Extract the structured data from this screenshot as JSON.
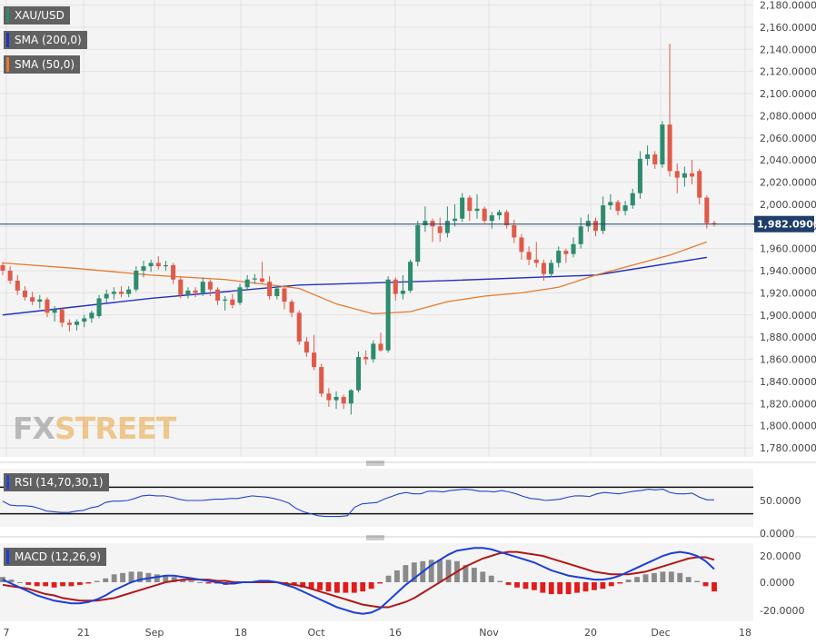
{
  "legend": {
    "instrument": "XAU/USD",
    "sma200": "SMA (200,0)",
    "sma50": "SMA (50,0)",
    "rsi": "RSI (14,70,30,1)",
    "macd": "MACD (12,26,9)"
  },
  "watermark": {
    "fx": "FX",
    "street": "STREET"
  },
  "last_price": "1,982.0900",
  "colors": {
    "up": "#2e8b6f",
    "down": "#e05a4a",
    "sma200": "#2233bb",
    "sma50": "#e8782a",
    "rsi": "#2244cc",
    "macd": "#1a3fd6",
    "signal": "#b01818",
    "hist_pos": "#8a8a8a",
    "hist_neg": "#e21b1b",
    "pane_bg": "#f4f4f4",
    "grid": "#e2e2e2"
  },
  "chart_data": [
    {
      "type": "candlestick",
      "title": "XAU/USD",
      "x_tick_labels": [
        "7",
        "21",
        "Sep",
        "18",
        "Oct",
        "16",
        "Nov",
        "20",
        "Dec",
        "18"
      ],
      "y_tick_labels": [
        "2,180.0000",
        "2,160.0000",
        "2,140.0000",
        "2,120.0000",
        "2,100.0000",
        "2,080.0000",
        "2,060.0000",
        "2,040.0000",
        "2,020.0000",
        "2,000.0000",
        "1,980.0000",
        "1,960.0000",
        "1,940.0000",
        "1,920.0000",
        "1,900.0000",
        "1,880.0000",
        "1,860.0000",
        "1,840.0000",
        "1,820.0000",
        "1,800.0000",
        "1,780.0000"
      ],
      "ylim": [
        1772,
        2185
      ],
      "last_value": 1982.09,
      "candles": [
        {
          "o": 1945,
          "h": 1948,
          "l": 1936,
          "c": 1940
        },
        {
          "o": 1940,
          "h": 1944,
          "l": 1928,
          "c": 1931
        },
        {
          "o": 1931,
          "h": 1936,
          "l": 1918,
          "c": 1922
        },
        {
          "o": 1922,
          "h": 1926,
          "l": 1913,
          "c": 1916
        },
        {
          "o": 1916,
          "h": 1921,
          "l": 1909,
          "c": 1912
        },
        {
          "o": 1912,
          "h": 1918,
          "l": 1906,
          "c": 1914
        },
        {
          "o": 1914,
          "h": 1916,
          "l": 1898,
          "c": 1902
        },
        {
          "o": 1902,
          "h": 1908,
          "l": 1894,
          "c": 1905
        },
        {
          "o": 1905,
          "h": 1906,
          "l": 1889,
          "c": 1893
        },
        {
          "o": 1893,
          "h": 1896,
          "l": 1885,
          "c": 1891
        },
        {
          "o": 1891,
          "h": 1896,
          "l": 1886,
          "c": 1894
        },
        {
          "o": 1894,
          "h": 1900,
          "l": 1889,
          "c": 1897
        },
        {
          "o": 1897,
          "h": 1904,
          "l": 1893,
          "c": 1902
        },
        {
          "o": 1899,
          "h": 1918,
          "l": 1897,
          "c": 1915
        },
        {
          "o": 1915,
          "h": 1923,
          "l": 1911,
          "c": 1919
        },
        {
          "o": 1919,
          "h": 1925,
          "l": 1914,
          "c": 1921
        },
        {
          "o": 1921,
          "h": 1926,
          "l": 1916,
          "c": 1919
        },
        {
          "o": 1919,
          "h": 1926,
          "l": 1916,
          "c": 1923
        },
        {
          "o": 1923,
          "h": 1944,
          "l": 1921,
          "c": 1940
        },
        {
          "o": 1940,
          "h": 1949,
          "l": 1934,
          "c": 1944
        },
        {
          "o": 1944,
          "h": 1950,
          "l": 1939,
          "c": 1947
        },
        {
          "o": 1947,
          "h": 1953,
          "l": 1941,
          "c": 1944
        },
        {
          "o": 1944,
          "h": 1949,
          "l": 1940,
          "c": 1945
        },
        {
          "o": 1945,
          "h": 1947,
          "l": 1928,
          "c": 1932
        },
        {
          "o": 1932,
          "h": 1935,
          "l": 1915,
          "c": 1918
        },
        {
          "o": 1918,
          "h": 1925,
          "l": 1915,
          "c": 1922
        },
        {
          "o": 1922,
          "h": 1925,
          "l": 1916,
          "c": 1920
        },
        {
          "o": 1920,
          "h": 1934,
          "l": 1917,
          "c": 1930
        },
        {
          "o": 1930,
          "h": 1932,
          "l": 1917,
          "c": 1923
        },
        {
          "o": 1923,
          "h": 1925,
          "l": 1909,
          "c": 1913
        },
        {
          "o": 1913,
          "h": 1917,
          "l": 1904,
          "c": 1914
        },
        {
          "o": 1914,
          "h": 1919,
          "l": 1906,
          "c": 1909
        },
        {
          "o": 1911,
          "h": 1928,
          "l": 1909,
          "c": 1925
        },
        {
          "o": 1925,
          "h": 1936,
          "l": 1922,
          "c": 1932
        },
        {
          "o": 1932,
          "h": 1937,
          "l": 1928,
          "c": 1933
        },
        {
          "o": 1933,
          "h": 1948,
          "l": 1929,
          "c": 1930
        },
        {
          "o": 1930,
          "h": 1935,
          "l": 1914,
          "c": 1917
        },
        {
          "o": 1917,
          "h": 1926,
          "l": 1914,
          "c": 1924
        },
        {
          "o": 1924,
          "h": 1927,
          "l": 1905,
          "c": 1912
        },
        {
          "o": 1912,
          "h": 1914,
          "l": 1898,
          "c": 1902
        },
        {
          "o": 1902,
          "h": 1904,
          "l": 1873,
          "c": 1876
        },
        {
          "o": 1876,
          "h": 1880,
          "l": 1862,
          "c": 1866
        },
        {
          "o": 1866,
          "h": 1882,
          "l": 1850,
          "c": 1853
        },
        {
          "o": 1853,
          "h": 1856,
          "l": 1826,
          "c": 1829
        },
        {
          "o": 1829,
          "h": 1834,
          "l": 1817,
          "c": 1823
        },
        {
          "o": 1823,
          "h": 1831,
          "l": 1815,
          "c": 1826
        },
        {
          "o": 1826,
          "h": 1828,
          "l": 1815,
          "c": 1820
        },
        {
          "o": 1820,
          "h": 1833,
          "l": 1810,
          "c": 1832
        },
        {
          "o": 1832,
          "h": 1867,
          "l": 1830,
          "c": 1862
        },
        {
          "o": 1862,
          "h": 1868,
          "l": 1855,
          "c": 1860
        },
        {
          "o": 1860,
          "h": 1877,
          "l": 1857,
          "c": 1874
        },
        {
          "o": 1874,
          "h": 1884,
          "l": 1867,
          "c": 1868
        },
        {
          "o": 1868,
          "h": 1935,
          "l": 1866,
          "c": 1932
        },
        {
          "o": 1932,
          "h": 1934,
          "l": 1913,
          "c": 1919
        },
        {
          "o": 1919,
          "h": 1936,
          "l": 1914,
          "c": 1922
        },
        {
          "o": 1922,
          "h": 1950,
          "l": 1920,
          "c": 1948
        },
        {
          "o": 1948,
          "h": 1985,
          "l": 1944,
          "c": 1981
        },
        {
          "o": 1981,
          "h": 1998,
          "l": 1975,
          "c": 1985
        },
        {
          "o": 1985,
          "h": 1987,
          "l": 1966,
          "c": 1980
        },
        {
          "o": 1980,
          "h": 1988,
          "l": 1966,
          "c": 1974
        },
        {
          "o": 1974,
          "h": 1998,
          "l": 1970,
          "c": 1985
        },
        {
          "o": 1985,
          "h": 2000,
          "l": 1980,
          "c": 1987
        },
        {
          "o": 1987,
          "h": 2010,
          "l": 1984,
          "c": 2006
        },
        {
          "o": 2006,
          "h": 2008,
          "l": 1985,
          "c": 1994
        },
        {
          "o": 1994,
          "h": 2009,
          "l": 1987,
          "c": 1996
        },
        {
          "o": 1996,
          "h": 1998,
          "l": 1983,
          "c": 1985
        },
        {
          "o": 1985,
          "h": 1993,
          "l": 1978,
          "c": 1990
        },
        {
          "o": 1990,
          "h": 1995,
          "l": 1986,
          "c": 1993
        },
        {
          "o": 1993,
          "h": 1995,
          "l": 1978,
          "c": 1981
        },
        {
          "o": 1981,
          "h": 1986,
          "l": 1965,
          "c": 1970
        },
        {
          "o": 1970,
          "h": 1973,
          "l": 1950,
          "c": 1957
        },
        {
          "o": 1957,
          "h": 1962,
          "l": 1945,
          "c": 1950
        },
        {
          "o": 1950,
          "h": 1966,
          "l": 1943,
          "c": 1947
        },
        {
          "o": 1947,
          "h": 1950,
          "l": 1931,
          "c": 1937
        },
        {
          "o": 1937,
          "h": 1950,
          "l": 1934,
          "c": 1947
        },
        {
          "o": 1947,
          "h": 1962,
          "l": 1943,
          "c": 1958
        },
        {
          "o": 1958,
          "h": 1960,
          "l": 1947,
          "c": 1955
        },
        {
          "o": 1955,
          "h": 1970,
          "l": 1952,
          "c": 1964
        },
        {
          "o": 1964,
          "h": 1988,
          "l": 1960,
          "c": 1980
        },
        {
          "o": 1980,
          "h": 1991,
          "l": 1975,
          "c": 1985
        },
        {
          "o": 1985,
          "h": 1988,
          "l": 1971,
          "c": 1976
        },
        {
          "o": 1976,
          "h": 2007,
          "l": 1973,
          "c": 1999
        },
        {
          "o": 1999,
          "h": 2009,
          "l": 1995,
          "c": 2002
        },
        {
          "o": 2002,
          "h": 2004,
          "l": 1990,
          "c": 1994
        },
        {
          "o": 1994,
          "h": 2003,
          "l": 1990,
          "c": 1999
        },
        {
          "o": 1999,
          "h": 2014,
          "l": 1996,
          "c": 2010
        },
        {
          "o": 2010,
          "h": 2048,
          "l": 2005,
          "c": 2041
        },
        {
          "o": 2041,
          "h": 2053,
          "l": 2035,
          "c": 2045
        },
        {
          "o": 2045,
          "h": 2048,
          "l": 2032,
          "c": 2036
        },
        {
          "o": 2036,
          "h": 2075,
          "l": 2033,
          "c": 2072
        },
        {
          "o": 2072,
          "h": 2145,
          "l": 2025,
          "c": 2030
        },
        {
          "o": 2030,
          "h": 2037,
          "l": 2010,
          "c": 2024
        },
        {
          "o": 2024,
          "h": 2034,
          "l": 2016,
          "c": 2028
        },
        {
          "o": 2028,
          "h": 2040,
          "l": 2018,
          "c": 2025
        },
        {
          "o": 2030,
          "h": 2032,
          "l": 2000,
          "c": 2006
        },
        {
          "o": 2006,
          "h": 2008,
          "l": 1978,
          "c": 1983
        },
        {
          "o": 1983,
          "h": 1985,
          "l": 1980,
          "c": 1982
        }
      ],
      "sma200": [
        [
          0,
          1900
        ],
        [
          20,
          1915
        ],
        [
          40,
          1927
        ],
        [
          60,
          1931
        ],
        [
          80,
          1936
        ],
        [
          95,
          1952
        ]
      ],
      "sma50": [
        [
          0,
          1947
        ],
        [
          10,
          1942
        ],
        [
          20,
          1936
        ],
        [
          30,
          1932
        ],
        [
          40,
          1924
        ],
        [
          45,
          1910
        ],
        [
          50,
          1901
        ],
        [
          55,
          1903
        ],
        [
          60,
          1912
        ],
        [
          65,
          1917
        ],
        [
          70,
          1920
        ],
        [
          75,
          1925
        ],
        [
          80,
          1936
        ],
        [
          85,
          1945
        ],
        [
          90,
          1954
        ],
        [
          95,
          1966
        ]
      ]
    },
    {
      "type": "line",
      "title": "RSI (14,70,30,1)",
      "y_tick_labels": [
        "50.0000",
        "0.0000"
      ],
      "ylim": [
        0,
        90
      ],
      "levels": [
        70,
        30
      ],
      "values": [
        49,
        43,
        42,
        42,
        41,
        38,
        34,
        33,
        32,
        32,
        34,
        35,
        39,
        41,
        47,
        49,
        49,
        50,
        53,
        57,
        58,
        57,
        57,
        55,
        52,
        50,
        50,
        50,
        51,
        52,
        52,
        53,
        53,
        55,
        57,
        56,
        55,
        53,
        50,
        46,
        38,
        33,
        30,
        27,
        26,
        26,
        26,
        27,
        40,
        45,
        46,
        47,
        52,
        56,
        60,
        62,
        60,
        60,
        64,
        64,
        63,
        65,
        66,
        67,
        66,
        64,
        64,
        63,
        65,
        63,
        60,
        56,
        53,
        52,
        50,
        51,
        52,
        55,
        57,
        57,
        56,
        60,
        62,
        61,
        60,
        62,
        64,
        65,
        67,
        66,
        67,
        62,
        60,
        60,
        61,
        55,
        51,
        51
      ]
    },
    {
      "type": "line",
      "title": "MACD (12,26,9)",
      "y_tick_labels": [
        "20.0000",
        "0.0000",
        "-20.0000"
      ],
      "ylim": [
        -25,
        28
      ],
      "macd": [
        2,
        -1,
        -4,
        -7,
        -10,
        -12,
        -14,
        -15,
        -16,
        -16,
        -15,
        -13,
        -10,
        -6,
        -3,
        0,
        2,
        3,
        4,
        5,
        5,
        4,
        3,
        2,
        1,
        0,
        -1,
        -1,
        0,
        0,
        1,
        1,
        0,
        -2,
        -4,
        -7,
        -10,
        -13,
        -16,
        -19,
        -21,
        -23,
        -24,
        -23,
        -20,
        -14,
        -8,
        -2,
        3,
        8,
        13,
        17,
        21,
        24,
        25,
        26,
        26,
        25,
        23,
        21,
        19,
        17,
        15,
        12,
        9,
        7,
        5,
        4,
        3,
        2,
        2,
        3,
        5,
        8,
        11,
        14,
        17,
        20,
        22,
        23,
        22,
        20,
        16,
        10
      ],
      "signal": [
        -2,
        -3,
        -4,
        -5,
        -7,
        -9,
        -10,
        -12,
        -13,
        -14,
        -14,
        -14,
        -13,
        -12,
        -10,
        -8,
        -6,
        -4,
        -2,
        0,
        1,
        2,
        2,
        2,
        2,
        1,
        1,
        0,
        0,
        0,
        0,
        0,
        0,
        -1,
        -2,
        -3,
        -5,
        -7,
        -9,
        -11,
        -13,
        -15,
        -17,
        -18,
        -19,
        -19,
        -17,
        -15,
        -12,
        -8,
        -4,
        0,
        4,
        8,
        12,
        15,
        18,
        20,
        22,
        23,
        23,
        22,
        21,
        20,
        18,
        16,
        14,
        12,
        10,
        8,
        7,
        6,
        6,
        6,
        7,
        8,
        10,
        12,
        14,
        16,
        18,
        19,
        19,
        17
      ],
      "histogram": [
        4,
        2,
        0,
        -2,
        -3,
        -3,
        -4,
        -3,
        -3,
        -2,
        -1,
        1,
        3,
        6,
        7,
        8,
        8,
        7,
        6,
        5,
        4,
        2,
        1,
        0,
        -1,
        -1,
        -2,
        -1,
        0,
        0,
        1,
        1,
        0,
        -1,
        -2,
        -4,
        -5,
        -6,
        -7,
        -8,
        -8,
        -8,
        -7,
        -5,
        -1,
        5,
        9,
        13,
        15,
        16,
        17,
        17,
        17,
        16,
        13,
        11,
        8,
        5,
        1,
        -2,
        -4,
        -5,
        -6,
        -8,
        -9,
        -9,
        -9,
        -8,
        -7,
        -6,
        -5,
        -3,
        -1,
        2,
        4,
        6,
        7,
        8,
        8,
        7,
        4,
        1,
        -3,
        -7
      ]
    }
  ]
}
